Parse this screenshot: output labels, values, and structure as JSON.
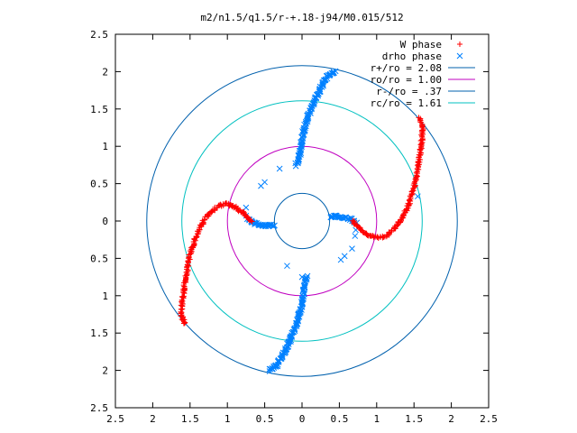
{
  "chart_data": {
    "type": "scatter",
    "title": "m2/n1.5/q1.5/r-+.18-j94/M0.015/512",
    "xlim": [
      -2.5,
      2.5
    ],
    "ylim": [
      -2.5,
      2.5
    ],
    "x_ticks": [
      -2.5,
      -2,
      -1.5,
      -1,
      -0.5,
      0,
      0.5,
      1,
      1.5,
      2,
      2.5
    ],
    "y_ticks": [
      -2.5,
      -2,
      -1.5,
      -1,
      -0.5,
      0,
      0.5,
      1,
      1.5,
      2,
      2.5
    ],
    "x_tick_labels": [
      "2.5",
      "2",
      "1.5",
      "1",
      "0.5",
      "0",
      "0.5",
      "1",
      "1.5",
      "2",
      "2.5"
    ],
    "y_tick_labels": [
      "2.5",
      "2",
      "1.5",
      "1",
      "0.5",
      "0",
      "0.5",
      "1",
      "1.5",
      "2",
      "2.5"
    ],
    "grid": false,
    "legend_position": "top-right",
    "legend": [
      {
        "label": "W phase",
        "color": "#ff0000",
        "marker": "plus"
      },
      {
        "label": "drho phase",
        "color": "#0080ff",
        "marker": "cross"
      },
      {
        "label": "r+/ro = 2.08",
        "color": "#0060ad",
        "marker": "line"
      },
      {
        "label": "ro/ro = 1.00",
        "color": "#c000c0",
        "marker": "line"
      },
      {
        "label": "r-/ro = .37",
        "color": "#0060ad",
        "marker": "line"
      },
      {
        "label": "rc/ro = 1.61",
        "color": "#00c0c0",
        "marker": "line"
      }
    ],
    "circles": [
      {
        "name": "r+/ro",
        "radius": 2.08,
        "color": "#0060ad"
      },
      {
        "name": "ro/ro",
        "radius": 1.0,
        "color": "#c000c0"
      },
      {
        "name": "r-/ro",
        "radius": 0.37,
        "color": "#0060ad"
      },
      {
        "name": "rc/ro",
        "radius": 1.61,
        "color": "#00c0c0"
      }
    ],
    "series": [
      {
        "name": "W phase",
        "color": "#ff0000",
        "marker": "plus",
        "arms": [
          [
            [
              0.68,
              0.0
            ],
            [
              0.8,
              -0.12
            ],
            [
              0.92,
              -0.2
            ],
            [
              1.02,
              -0.23
            ],
            [
              1.12,
              -0.2
            ],
            [
              1.22,
              -0.12
            ],
            [
              1.32,
              0.0
            ],
            [
              1.42,
              0.2
            ],
            [
              1.5,
              0.45
            ],
            [
              1.56,
              0.75
            ],
            [
              1.6,
              1.05
            ],
            [
              1.62,
              1.25
            ],
            [
              1.57,
              1.38
            ]
          ],
          [
            [
              -0.68,
              0.0
            ],
            [
              -0.8,
              0.12
            ],
            [
              -0.92,
              0.2
            ],
            [
              -1.02,
              0.23
            ],
            [
              -1.12,
              0.2
            ],
            [
              -1.22,
              0.12
            ],
            [
              -1.32,
              0.0
            ],
            [
              -1.42,
              -0.2
            ],
            [
              -1.5,
              -0.45
            ],
            [
              -1.56,
              -0.75
            ],
            [
              -1.6,
              -1.05
            ],
            [
              -1.62,
              -1.25
            ],
            [
              -1.57,
              -1.38
            ]
          ]
        ]
      },
      {
        "name": "drho phase",
        "color": "#0080ff",
        "marker": "cross",
        "arms": [
          [
            [
              -0.08,
              0.75
            ],
            [
              -0.05,
              0.8
            ],
            [
              -0.03,
              0.9
            ],
            [
              -0.01,
              1.05
            ],
            [
              0.02,
              1.2
            ],
            [
              0.08,
              1.4
            ],
            [
              0.16,
              1.6
            ],
            [
              0.26,
              1.8
            ],
            [
              0.34,
              1.93
            ],
            [
              0.44,
              2.0
            ]
          ],
          [
            [
              0.08,
              -0.75
            ],
            [
              0.05,
              -0.8
            ],
            [
              0.03,
              -0.9
            ],
            [
              0.01,
              -1.05
            ],
            [
              -0.02,
              -1.2
            ],
            [
              -0.08,
              -1.4
            ],
            [
              -0.16,
              -1.6
            ],
            [
              -0.26,
              -1.8
            ],
            [
              -0.34,
              -1.93
            ],
            [
              -0.44,
              -2.0
            ]
          ],
          [
            [
              0.37,
              0.06
            ],
            [
              0.45,
              0.06
            ],
            [
              0.55,
              0.05
            ],
            [
              0.65,
              0.03
            ],
            [
              0.72,
              -0.02
            ]
          ],
          [
            [
              -0.37,
              -0.06
            ],
            [
              -0.45,
              -0.06
            ],
            [
              -0.55,
              -0.05
            ],
            [
              -0.65,
              -0.03
            ],
            [
              -0.72,
              0.02
            ]
          ]
        ],
        "sparse": [
          [
            -0.3,
            0.7
          ],
          [
            -0.5,
            0.52
          ],
          [
            -0.55,
            0.47
          ],
          [
            -0.75,
            0.18
          ],
          [
            -0.75,
            0.07
          ],
          [
            -0.2,
            -0.6
          ],
          [
            0.0,
            -0.75
          ],
          [
            0.52,
            -0.52
          ],
          [
            0.57,
            -0.47
          ],
          [
            0.67,
            -0.37
          ],
          [
            0.71,
            -0.2
          ],
          [
            1.55,
            0.33
          ],
          [
            0.72,
            -0.12
          ]
        ]
      }
    ]
  }
}
